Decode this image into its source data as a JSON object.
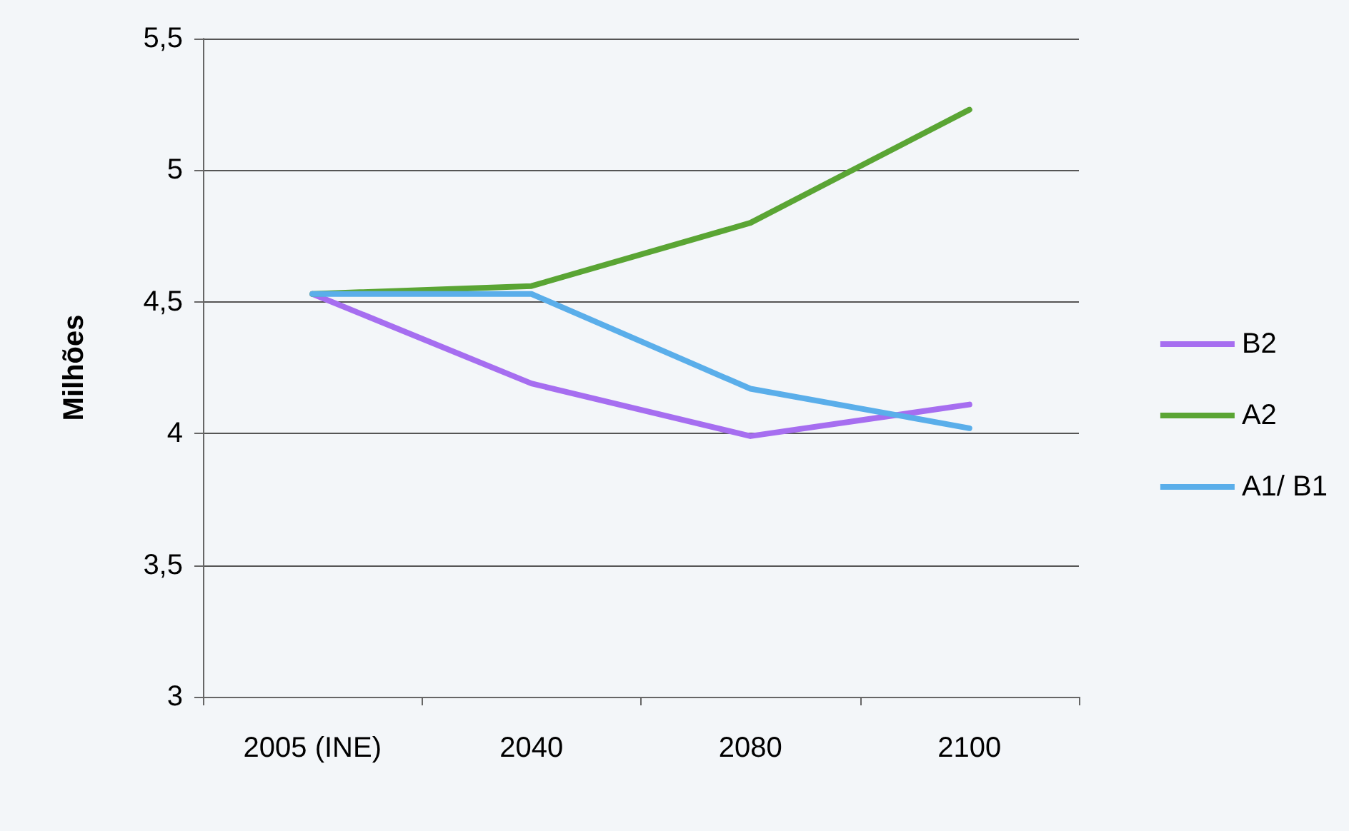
{
  "chart_data": {
    "type": "line",
    "ylabel": "Milhões",
    "categories": [
      "2005 (INE)",
      "2040",
      "2080",
      "2100"
    ],
    "series": [
      {
        "name": "B2",
        "color": "#a66ef0",
        "values": [
          4.53,
          4.19,
          3.99,
          4.11
        ]
      },
      {
        "name": "A2",
        "color": "#5aa534",
        "values": [
          4.53,
          4.56,
          4.8,
          5.23
        ]
      },
      {
        "name": "A1/ B1",
        "color": "#5aaeea",
        "values": [
          4.53,
          4.53,
          4.17,
          4.02
        ]
      }
    ],
    "ylim": [
      3,
      5.5
    ],
    "yticks": [
      {
        "value": 3,
        "label": "3"
      },
      {
        "value": 3.5,
        "label": "3,5"
      },
      {
        "value": 4,
        "label": "4"
      },
      {
        "value": 4.5,
        "label": "4,5"
      },
      {
        "value": 5,
        "label": "5"
      },
      {
        "value": 5.5,
        "label": "5,5"
      }
    ],
    "grid": "y",
    "legend": "right",
    "marker": "none",
    "line_style": "solid"
  }
}
